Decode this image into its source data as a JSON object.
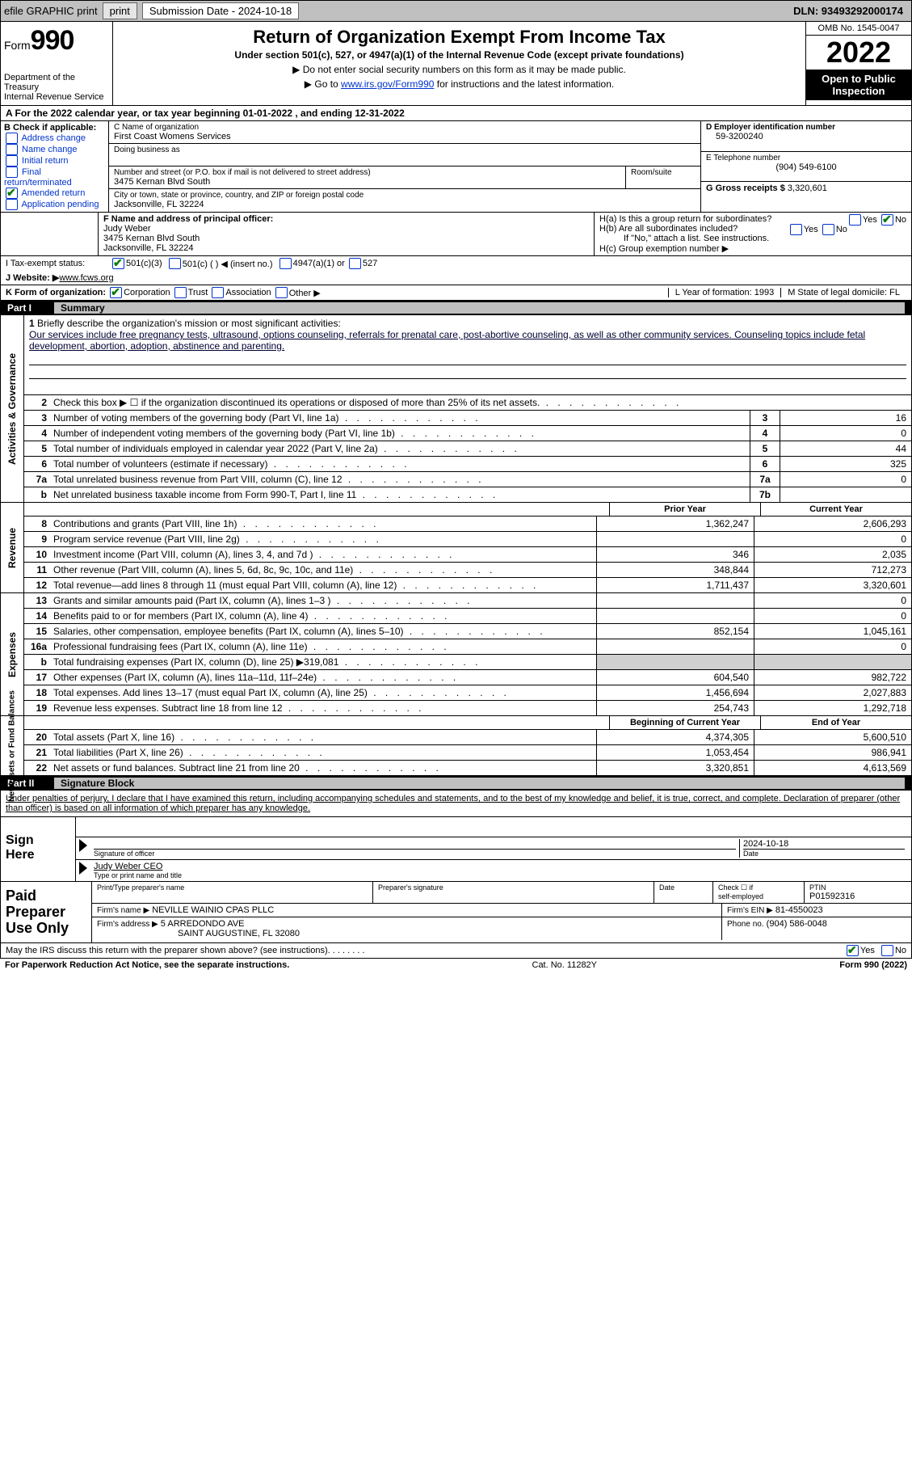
{
  "topbar": {
    "efile": "efile GRAPHIC print",
    "submission": "Submission Date - 2024-10-18",
    "dln": "DLN: 93493292000174"
  },
  "header": {
    "form_label": "Form",
    "form_num": "990",
    "title": "Return of Organization Exempt From Income Tax",
    "subtitle": "Under section 501(c), 527, or 4947(a)(1) of the Internal Revenue Code (except private foundations)",
    "note1": "▶ Do not enter social security numbers on this form as it may be made public.",
    "note2_pre": "▶ Go to ",
    "note2_link": "www.irs.gov/Form990",
    "note2_post": " for instructions and the latest information.",
    "dept": "Department of the Treasury\nInternal Revenue Service",
    "omb": "OMB No. 1545-0047",
    "year": "2022",
    "open": "Open to Public\nInspection"
  },
  "rowA": "A For the 2022 calendar year, or tax year beginning 01-01-2022   , and ending 12-31-2022",
  "colB": {
    "title": "B Check if applicable:",
    "opts": [
      "Address change",
      "Name change",
      "Initial return",
      "Final return/terminated",
      "Amended return",
      "Application pending"
    ],
    "checked": 4
  },
  "colC": {
    "name_lbl": "C Name of organization",
    "name": "First Coast Womens Services",
    "dba_lbl": "Doing business as",
    "street_lbl": "Number and street (or P.O. box if mail is not delivered to street address)",
    "room_lbl": "Room/suite",
    "street": "3475 Kernan Blvd South",
    "city_lbl": "City or town, state or province, country, and ZIP or foreign postal code",
    "city": "Jacksonville, FL  32224"
  },
  "colD": {
    "ein_lbl": "D Employer identification number",
    "ein": "59-3200240",
    "phone_lbl": "E Telephone number",
    "phone": "(904) 549-6100",
    "gross_lbl": "G Gross receipts $",
    "gross": "3,320,601"
  },
  "rowF": {
    "lbl": "F Name and address of principal officer:",
    "name": "Judy Weber",
    "street": "3475 Kernan Blvd South",
    "city": "Jacksonville, FL  32224"
  },
  "rowH": {
    "a": "H(a)  Is this a group return for subordinates?",
    "b": "H(b)  Are all subordinates included?",
    "b_note": "If \"No,\" attach a list. See instructions.",
    "c": "H(c)  Group exemption number ▶"
  },
  "rowI": {
    "lbl": "I    Tax-exempt status:",
    "o1": "501(c)(3)",
    "o2": "501(c) (   ) ◀ (insert no.)",
    "o3": "4947(a)(1) or",
    "o4": "527"
  },
  "rowJ": {
    "lbl": "J   Website: ▶ ",
    "val": "www.fcws.org"
  },
  "rowK": {
    "lbl": "K Form of organization:",
    "o1": "Corporation",
    "o2": "Trust",
    "o3": "Association",
    "o4": "Other ▶",
    "l": "L Year of formation: 1993",
    "m": "M State of legal domicile: FL"
  },
  "part1": {
    "num": "Part I",
    "title": "Summary"
  },
  "summary": {
    "briefly_lbl": "Briefly describe the organization's mission or most significant activities:",
    "mission": "Our services include free pregnancy tests, ultrasound, options counseling, referrals for prenatal care, post-abortive counseling, as well as other community services. Counseling topics include fetal development, abortion, adoption, abstinence and parenting.",
    "line2": "Check this box ▶ ☐  if the organization discontinued its operations or disposed of more than 25% of its net assets.",
    "sections": {
      "gov": "Activities & Governance",
      "rev": "Revenue",
      "exp": "Expenses",
      "net": "Net Assets or Fund Balances"
    },
    "gov_rows": [
      {
        "n": "3",
        "desc": "Number of voting members of the governing body (Part VI, line 1a)",
        "box": "3",
        "val": "16"
      },
      {
        "n": "4",
        "desc": "Number of independent voting members of the governing body (Part VI, line 1b)",
        "box": "4",
        "val": "0"
      },
      {
        "n": "5",
        "desc": "Total number of individuals employed in calendar year 2022 (Part V, line 2a)",
        "box": "5",
        "val": "44"
      },
      {
        "n": "6",
        "desc": "Total number of volunteers (estimate if necessary)",
        "box": "6",
        "val": "325"
      },
      {
        "n": "7a",
        "desc": "Total unrelated business revenue from Part VIII, column (C), line 12",
        "box": "7a",
        "val": "0"
      },
      {
        "n": "b",
        "desc": "Net unrelated business taxable income from Form 990-T, Part I, line 11",
        "box": "7b",
        "val": ""
      }
    ],
    "col_prior": "Prior Year",
    "col_current": "Current Year",
    "rev_rows": [
      {
        "n": "8",
        "desc": "Contributions and grants (Part VIII, line 1h)",
        "v1": "1,362,247",
        "v2": "2,606,293"
      },
      {
        "n": "9",
        "desc": "Program service revenue (Part VIII, line 2g)",
        "v1": "",
        "v2": "0"
      },
      {
        "n": "10",
        "desc": "Investment income (Part VIII, column (A), lines 3, 4, and 7d )",
        "v1": "346",
        "v2": "2,035"
      },
      {
        "n": "11",
        "desc": "Other revenue (Part VIII, column (A), lines 5, 6d, 8c, 9c, 10c, and 11e)",
        "v1": "348,844",
        "v2": "712,273"
      },
      {
        "n": "12",
        "desc": "Total revenue—add lines 8 through 11 (must equal Part VIII, column (A), line 12)",
        "v1": "1,711,437",
        "v2": "3,320,601"
      }
    ],
    "exp_rows": [
      {
        "n": "13",
        "desc": "Grants and similar amounts paid (Part IX, column (A), lines 1–3 )",
        "v1": "",
        "v2": "0"
      },
      {
        "n": "14",
        "desc": "Benefits paid to or for members (Part IX, column (A), line 4)",
        "v1": "",
        "v2": "0"
      },
      {
        "n": "15",
        "desc": "Salaries, other compensation, employee benefits (Part IX, column (A), lines 5–10)",
        "v1": "852,154",
        "v2": "1,045,161"
      },
      {
        "n": "16a",
        "desc": "Professional fundraising fees (Part IX, column (A), line 11e)",
        "v1": "",
        "v2": "0"
      },
      {
        "n": "b",
        "desc": "Total fundraising expenses (Part IX, column (D), line 25) ▶319,081",
        "v1": "GREY",
        "v2": "GREY"
      },
      {
        "n": "17",
        "desc": "Other expenses (Part IX, column (A), lines 11a–11d, 11f–24e)",
        "v1": "604,540",
        "v2": "982,722"
      },
      {
        "n": "18",
        "desc": "Total expenses. Add lines 13–17 (must equal Part IX, column (A), line 25)",
        "v1": "1,456,694",
        "v2": "2,027,883"
      },
      {
        "n": "19",
        "desc": "Revenue less expenses. Subtract line 18 from line 12",
        "v1": "254,743",
        "v2": "1,292,718"
      }
    ],
    "col_begin": "Beginning of Current Year",
    "col_end": "End of Year",
    "net_rows": [
      {
        "n": "20",
        "desc": "Total assets (Part X, line 16)",
        "v1": "4,374,305",
        "v2": "5,600,510"
      },
      {
        "n": "21",
        "desc": "Total liabilities (Part X, line 26)",
        "v1": "1,053,454",
        "v2": "986,941"
      },
      {
        "n": "22",
        "desc": "Net assets or fund balances. Subtract line 21 from line 20",
        "v1": "3,320,851",
        "v2": "4,613,569"
      }
    ]
  },
  "part2": {
    "num": "Part II",
    "title": "Signature Block"
  },
  "sig": {
    "intro": "Under penalties of perjury, I declare that I have examined this return, including accompanying schedules and statements, and to the best of my knowledge and belief, it is true, correct, and complete. Declaration of preparer (other than officer) is based on all information of which preparer has any knowledge.",
    "sign_here": "Sign\nHere",
    "sig_officer": "Signature of officer",
    "date": "2024-10-18",
    "date_lbl": "Date",
    "name_title": "Judy Weber  CEO",
    "type_lbl": "Type or print name and title"
  },
  "prep": {
    "title": "Paid\nPreparer\nUse Only",
    "h1": "Print/Type preparer's name",
    "h2": "Preparer's signature",
    "h3": "Date",
    "h4_a": "Check ☐ if",
    "h4_b": "self-employed",
    "h5": "PTIN",
    "ptin": "P01592316",
    "firm_name_lbl": "Firm's name    ▶",
    "firm_name": "NEVILLE WAINIO CPAS PLLC",
    "firm_ein_lbl": "Firm's EIN ▶",
    "firm_ein": "81-4550023",
    "firm_addr_lbl": "Firm's address ▶",
    "firm_addr1": "5 ARREDONDO AVE",
    "firm_addr2": "SAINT AUGUSTINE, FL  32080",
    "phone_lbl": "Phone no.",
    "phone": "(904) 586-0048"
  },
  "footer": {
    "discuss": "May the IRS discuss this return with the preparer shown above? (see instructions)",
    "pra": "For Paperwork Reduction Act Notice, see the separate instructions.",
    "cat": "Cat. No. 11282Y",
    "form": "Form 990 (2022)"
  }
}
